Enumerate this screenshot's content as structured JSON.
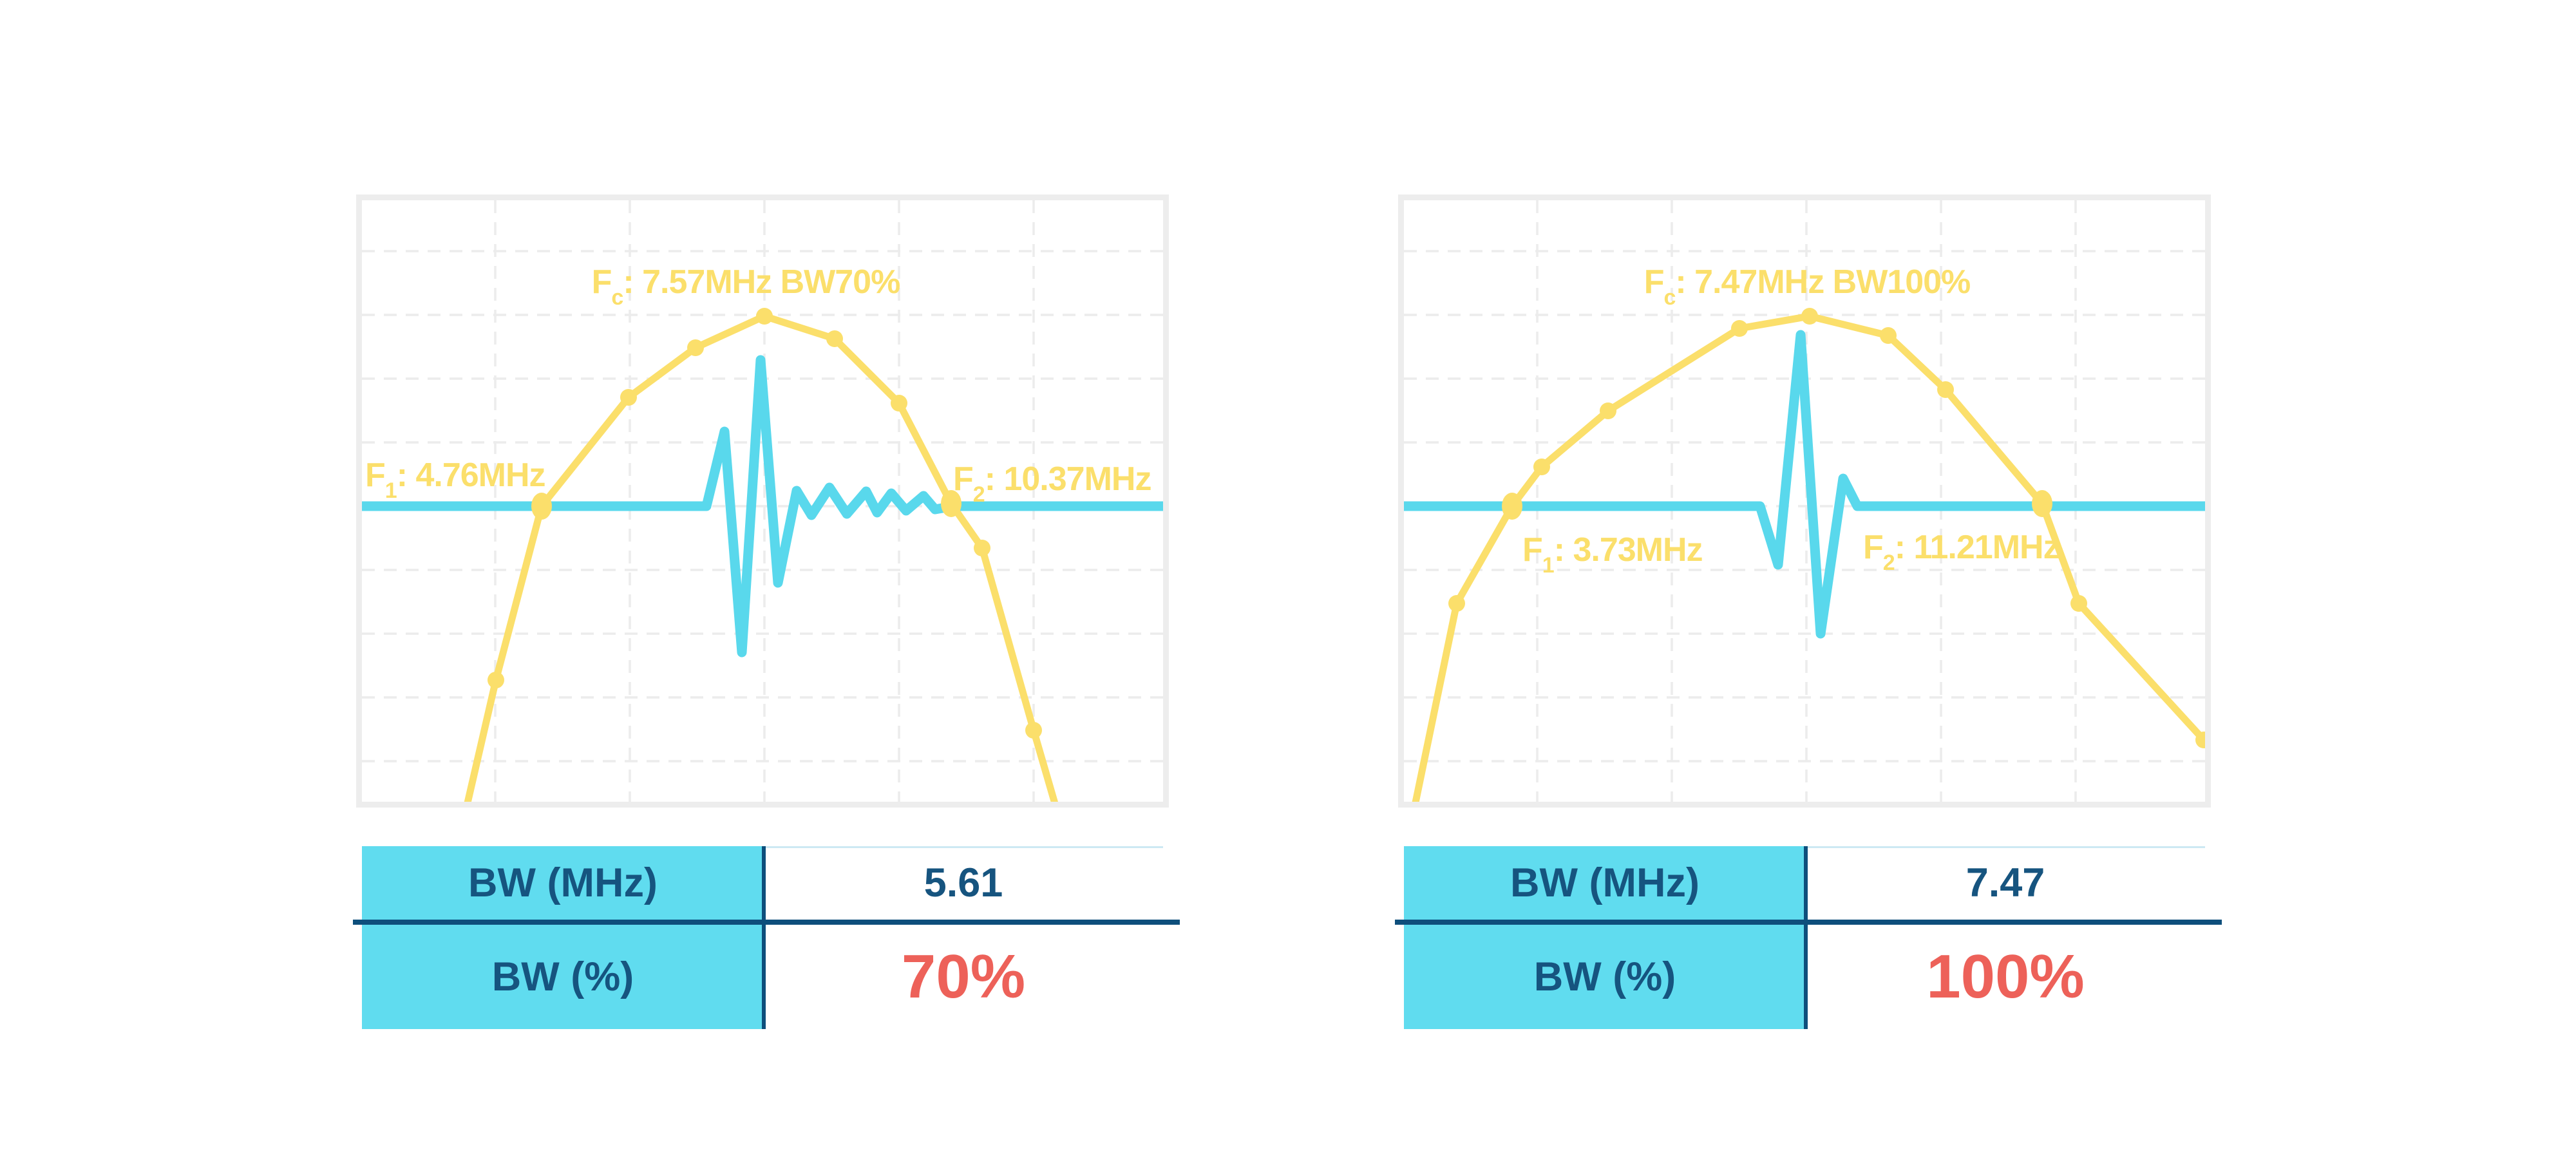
{
  "page": {
    "background": "#FFFFFF"
  },
  "colors": {
    "spectrum_yellow": "#FBDF6B",
    "pulse_cyan": "#59D8EC",
    "table_fill_cyan": "#60DCEF",
    "text_navy": "#16547F",
    "divider_navy": "#0E4F7C",
    "accent_red": "#ED6159",
    "grid_gray": "#ECECEC",
    "panel_border_gray": "#EDEDED",
    "value_col_topline": "#CDE9F3"
  },
  "panels": [
    {
      "name": "bw70",
      "annotations": {
        "fc": {
          "f": "F",
          "sub": "c",
          "rest": ": 7.57MHz BW70%"
        },
        "f1": {
          "f": "F",
          "sub": "1",
          "rest": ": 4.76MHz"
        },
        "f2": {
          "f": "F",
          "sub": "2",
          "rest": ": 10.37MHz"
        }
      },
      "table": {
        "rows": [
          {
            "label": "BW (MHz)",
            "value": "5.61"
          },
          {
            "label": "BW (%)",
            "value": "70%"
          }
        ]
      }
    },
    {
      "name": "bw100",
      "annotations": {
        "fc": {
          "f": "F",
          "sub": "c",
          "rest": ": 7.47MHz BW100%"
        },
        "f1": {
          "f": "F",
          "sub": "1",
          "rest": ": 3.73MHz"
        },
        "f2": {
          "f": "F",
          "sub": "2",
          "rest": ": 11.21MHz"
        }
      },
      "table": {
        "rows": [
          {
            "label": "BW (MHz)",
            "value": "7.47"
          },
          {
            "label": "BW (%)",
            "value": "100%"
          }
        ]
      }
    }
  ],
  "chart_data": [
    {
      "type": "line",
      "title": "Fc: 7.57MHz BW70%",
      "xlabel": "frequency (MHz, unlabeled axis)",
      "ylabel": "relative amplitude (unlabeled axis)",
      "grid": true,
      "legend": false,
      "annotations": [
        "Fc: 7.57MHz BW70%",
        "F1: 4.76MHz",
        "F2: 10.37MHz"
      ],
      "markers": {
        "f1_MHz": 4.76,
        "f2_MHz": 10.37,
        "fc_MHz": 7.57,
        "bw_MHz": 5.61,
        "bw_pct": 70
      },
      "series": [
        {
          "name": "pulse spectrum",
          "freq_MHz": [
            3.74,
            4.13,
            4.76,
            5.95,
            6.87,
            7.81,
            8.77,
            9.65,
            10.37,
            10.79,
            11.5,
            11.8
          ],
          "rel_amplitude": [
            0.0,
            0.2,
            0.49,
            0.67,
            0.75,
            0.81,
            0.77,
            0.66,
            0.49,
            0.42,
            0.12,
            0.0
          ]
        },
        {
          "name": "time-domain pulse overlay",
          "description": "cyan excitation pulse with long decaying ringing drawn on the -dB crossing baseline, centered near band center"
        }
      ],
      "render": {
        "size": [
          1244,
          934
        ],
        "grid": {
          "vx": [
            207,
            416,
            625,
            834,
            1043
          ],
          "hy": [
            79,
            178,
            277,
            376,
            475,
            574,
            673,
            772,
            871
          ]
        },
        "spectrum": [
          [
            163,
            940
          ],
          [
            208,
            745
          ],
          [
            279,
            475
          ],
          [
            414,
            306
          ],
          [
            518,
            229
          ],
          [
            625,
            180
          ],
          [
            734,
            215
          ],
          [
            834,
            315
          ],
          [
            915,
            471
          ],
          [
            963,
            540
          ],
          [
            1043,
            823
          ],
          [
            1077,
            940
          ]
        ],
        "pulse": [
          [
            0,
            475
          ],
          [
            535,
            475
          ],
          [
            563,
            359
          ],
          [
            590,
            702
          ],
          [
            619,
            248
          ],
          [
            646,
            594
          ],
          [
            675,
            451
          ],
          [
            698,
            489
          ],
          [
            726,
            446
          ],
          [
            753,
            487
          ],
          [
            783,
            452
          ],
          [
            800,
            485
          ],
          [
            822,
            455
          ],
          [
            845,
            482
          ],
          [
            872,
            459
          ],
          [
            890,
            480
          ],
          [
            918,
            475
          ],
          [
            1244,
            475
          ]
        ],
        "markers_small": [
          [
            208,
            745
          ],
          [
            414,
            306
          ],
          [
            518,
            229
          ],
          [
            625,
            180
          ],
          [
            734,
            215
          ],
          [
            834,
            315
          ],
          [
            963,
            540
          ],
          [
            1043,
            823
          ]
        ],
        "markers_large": [
          [
            279,
            475
          ],
          [
            915,
            471
          ]
        ]
      }
    },
    {
      "type": "line",
      "title": "Fc: 7.47MHz BW100%",
      "xlabel": "frequency (MHz, unlabeled axis)",
      "ylabel": "relative amplitude (unlabeled axis)",
      "grid": true,
      "legend": false,
      "annotations": [
        "Fc: 7.47MHz BW100%",
        "F1: 3.73MHz",
        "F2: 11.21MHz"
      ],
      "markers": {
        "f1_MHz": 3.73,
        "f2_MHz": 11.21,
        "fc_MHz": 7.47,
        "bw_MHz": 7.47,
        "bw_pct": 100
      },
      "series": [
        {
          "name": "pulse spectrum",
          "freq_MHz": [
            2.36,
            2.95,
            3.73,
            4.15,
            5.08,
            6.94,
            7.93,
            9.04,
            9.85,
            11.21,
            11.73,
            13.49
          ],
          "rel_amplitude": [
            0.0,
            0.33,
            0.49,
            0.56,
            0.65,
            0.79,
            0.81,
            0.78,
            0.69,
            0.49,
            0.33,
            0.1
          ]
        },
        {
          "name": "time-domain pulse overlay",
          "description": "short cyan broadband pulse (one dominant cycle) drawn on the -dB crossing baseline, centered near band center"
        }
      ],
      "render": {
        "size": [
          1244,
          934
        ],
        "grid": {
          "vx": [
            207,
            416,
            625,
            834,
            1043
          ],
          "hy": [
            79,
            178,
            277,
            376,
            475,
            574,
            673,
            772,
            871
          ]
        },
        "spectrum": [
          [
            17,
            940
          ],
          [
            82,
            626
          ],
          [
            168,
            475
          ],
          [
            214,
            414
          ],
          [
            317,
            327
          ],
          [
            521,
            199
          ],
          [
            630,
            180
          ],
          [
            752,
            210
          ],
          [
            841,
            294
          ],
          [
            991,
            471
          ],
          [
            1048,
            626
          ],
          [
            1242,
            838
          ]
        ],
        "pulse": [
          [
            0,
            475
          ],
          [
            553,
            475
          ],
          [
            581,
            566
          ],
          [
            616,
            209
          ],
          [
            647,
            673
          ],
          [
            682,
            432
          ],
          [
            704,
            475
          ],
          [
            1244,
            475
          ]
        ],
        "markers_small": [
          [
            82,
            626
          ],
          [
            214,
            414
          ],
          [
            317,
            327
          ],
          [
            521,
            199
          ],
          [
            630,
            180
          ],
          [
            752,
            210
          ],
          [
            841,
            294
          ],
          [
            1048,
            626
          ],
          [
            1242,
            838
          ]
        ],
        "markers_large": [
          [
            168,
            475
          ],
          [
            991,
            471
          ]
        ]
      }
    }
  ]
}
